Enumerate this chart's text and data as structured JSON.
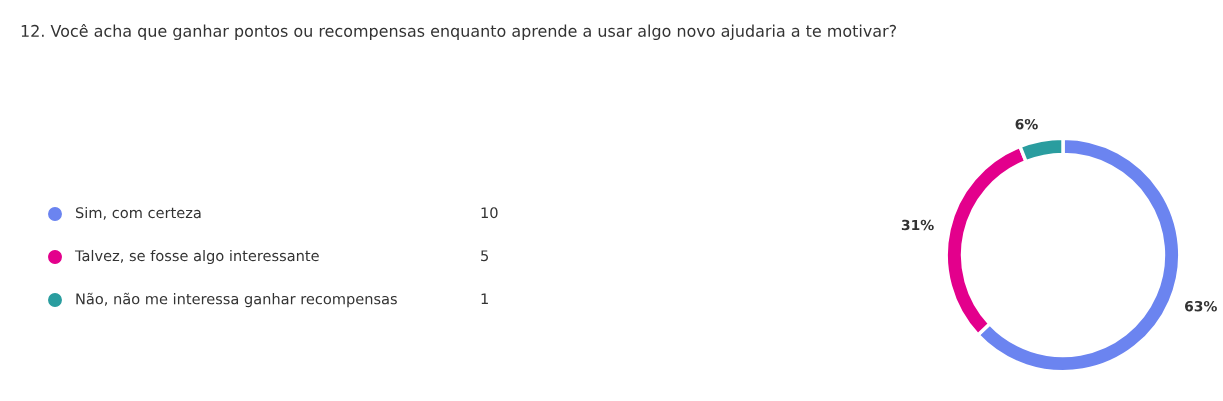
{
  "chart_data": {
    "type": "donut",
    "title": "12. Você acha que ganhar pontos ou recompensas enquanto aprende a usar algo novo ajudaria a te motivar?",
    "categories": [
      "Sim, com certeza",
      "Talvez, se fosse algo interessante",
      "Não, não me interessa ganhar recompensas"
    ],
    "values": [
      63,
      31,
      6
    ],
    "value_labels": [
      "63%",
      "31%",
      "6%"
    ],
    "annotations": [
      "10",
      "5",
      "1"
    ],
    "colors": [
      "#6b84f0",
      "#e3008c",
      "#2a9d9f"
    ],
    "legend": "left"
  }
}
